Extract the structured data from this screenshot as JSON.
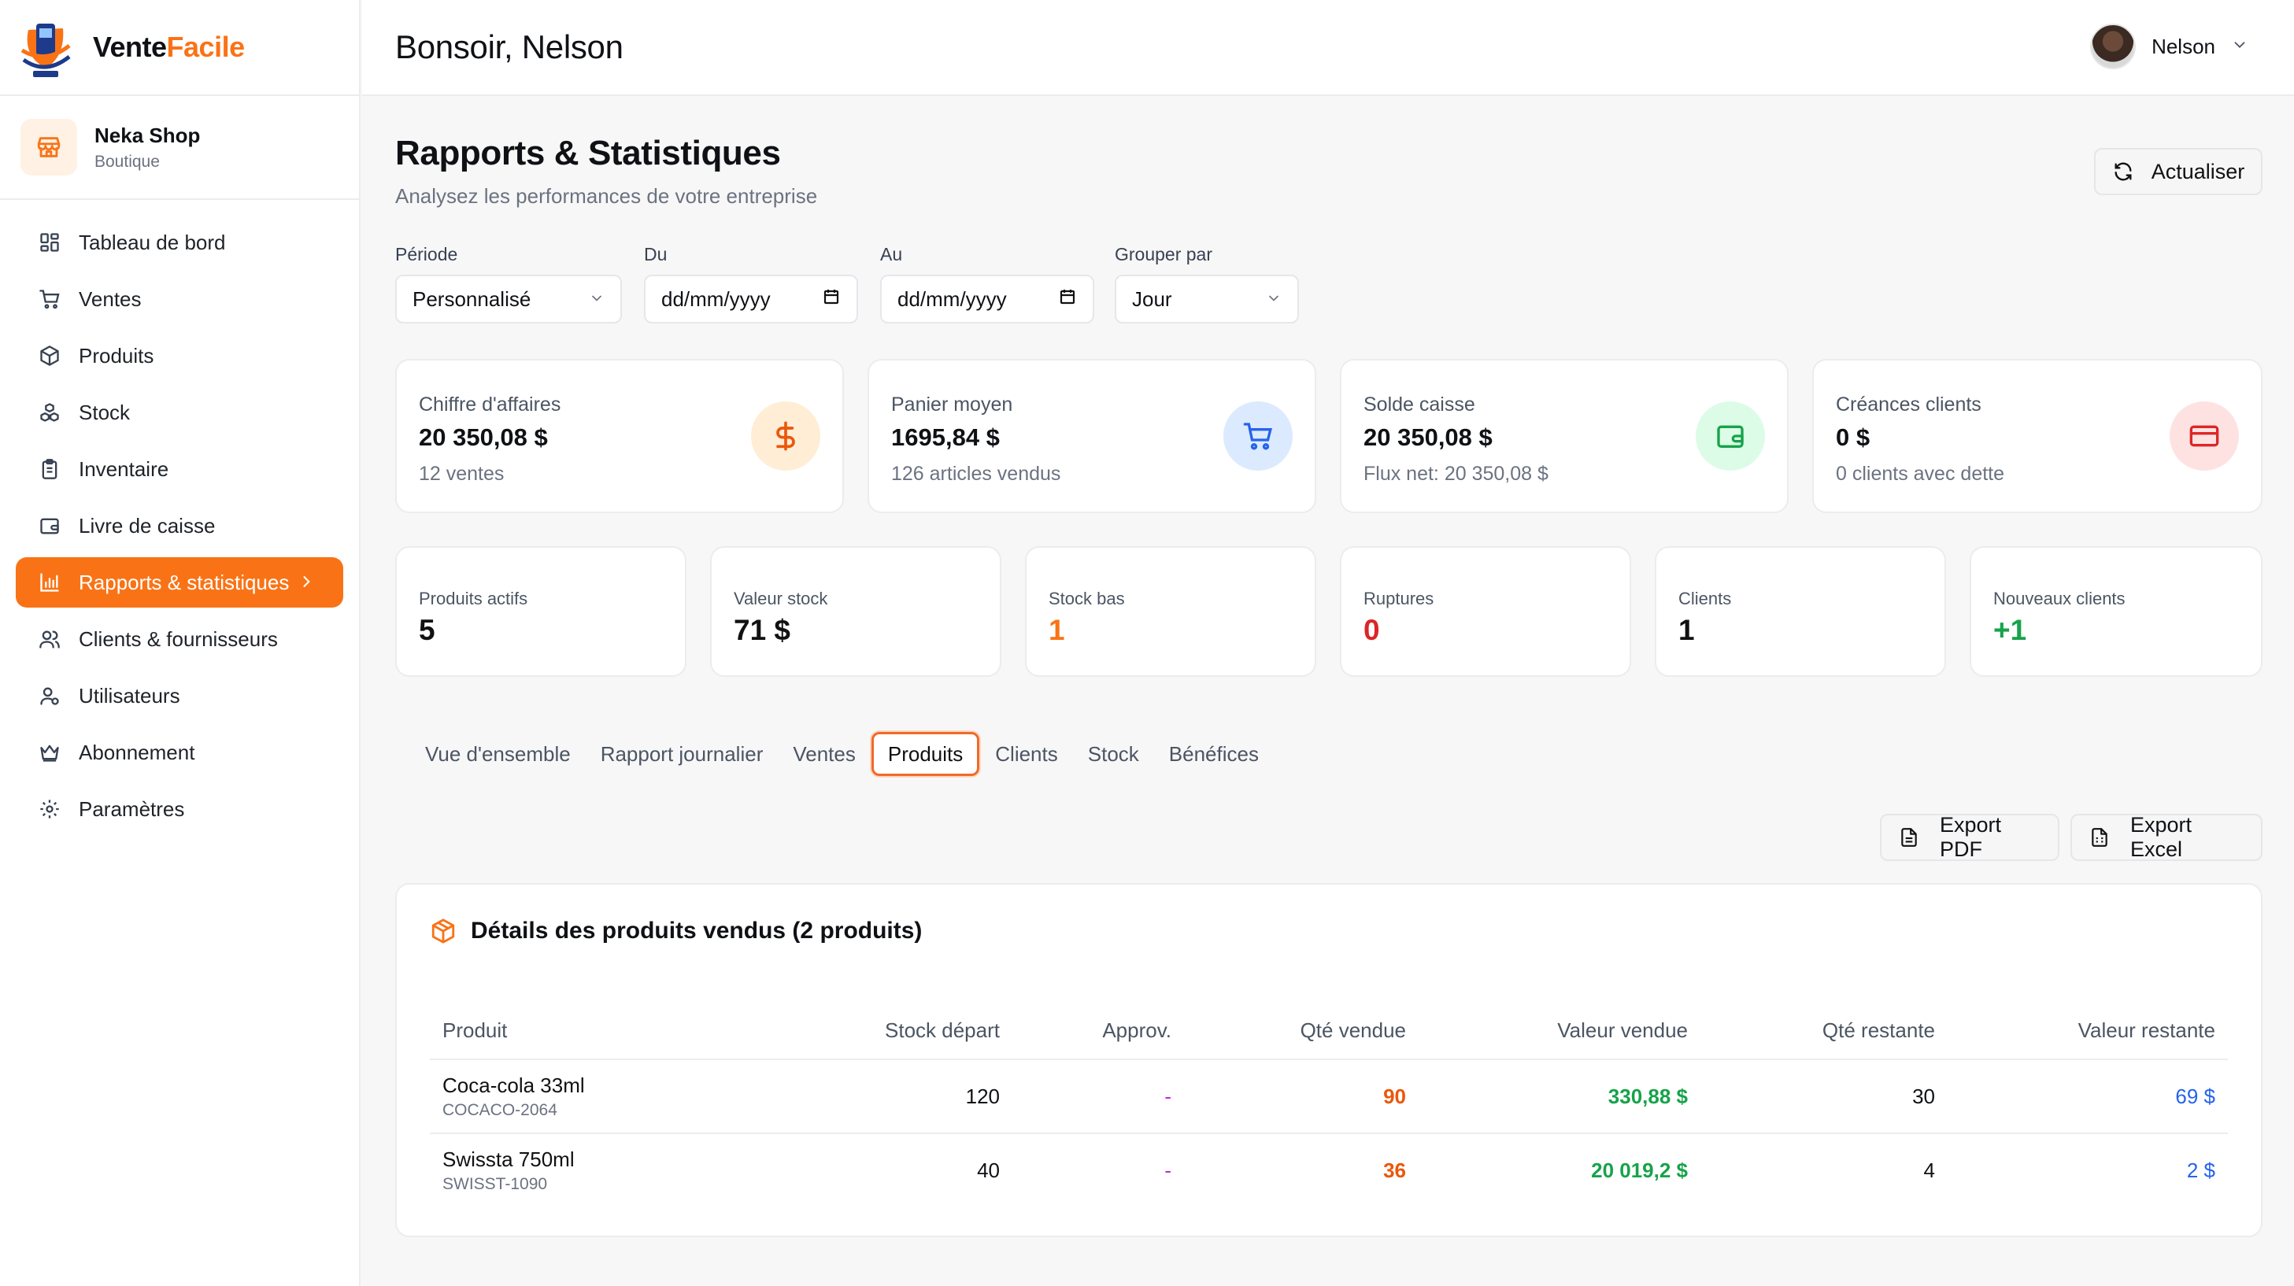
{
  "brand": {
    "name_main": "Vente",
    "name_accent": "Facile"
  },
  "shop": {
    "name": "Neka Shop",
    "type": "Boutique"
  },
  "sidebar": {
    "items": [
      {
        "label": "Tableau de bord",
        "icon": "dashboard-icon"
      },
      {
        "label": "Ventes",
        "icon": "cart-icon"
      },
      {
        "label": "Produits",
        "icon": "box-icon"
      },
      {
        "label": "Stock",
        "icon": "boxes-icon"
      },
      {
        "label": "Inventaire",
        "icon": "clipboard-icon"
      },
      {
        "label": "Livre de caisse",
        "icon": "wallet-icon"
      },
      {
        "label": "Rapports & statistiques",
        "icon": "bar-chart-icon",
        "active": true
      },
      {
        "label": "Clients & fournisseurs",
        "icon": "users-icon"
      },
      {
        "label": "Utilisateurs",
        "icon": "user-cog-icon"
      },
      {
        "label": "Abonnement",
        "icon": "crown-icon"
      },
      {
        "label": "Paramètres",
        "icon": "gear-icon"
      }
    ]
  },
  "header": {
    "greeting": "Bonsoir, Nelson",
    "user_name": "Nelson"
  },
  "page": {
    "title": "Rapports & Statistiques",
    "subtitle": "Analysez les performances de votre entreprise",
    "refresh_label": "Actualiser"
  },
  "filters": {
    "period": {
      "label": "Période",
      "value": "Personnalisé"
    },
    "from": {
      "label": "Du",
      "value": "dd/mm/yyyy"
    },
    "to": {
      "label": "Au",
      "value": "dd/mm/yyyy"
    },
    "group": {
      "label": "Grouper par",
      "value": "Jour"
    }
  },
  "kpis": [
    {
      "label": "Chiffre d'affaires",
      "value": "20 350,08 $",
      "sub": "12 ventes",
      "icon": "dollar-icon",
      "color": "#ea580c",
      "bg": "#ffedd5"
    },
    {
      "label": "Panier moyen",
      "value": "1695,84 $",
      "sub": "126 articles vendus",
      "icon": "cart-icon",
      "color": "#2563eb",
      "bg": "#dbeafe"
    },
    {
      "label": "Solde caisse",
      "value": "20 350,08 $",
      "sub": "Flux net: 20 350,08 $",
      "icon": "wallet-icon",
      "color": "#16a34a",
      "bg": "#dcfce7"
    },
    {
      "label": "Créances clients",
      "value": "0 $",
      "sub": "0 clients avec dette",
      "icon": "credit-card-icon",
      "color": "#dc2626",
      "bg": "#fee2e2"
    }
  ],
  "stats": [
    {
      "label": "Produits actifs",
      "value": "5",
      "color": "#111111"
    },
    {
      "label": "Valeur stock",
      "value": "71 $",
      "color": "#111111"
    },
    {
      "label": "Stock bas",
      "value": "1",
      "color": "#f97316"
    },
    {
      "label": "Ruptures",
      "value": "0",
      "color": "#dc2626"
    },
    {
      "label": "Clients",
      "value": "1",
      "color": "#111111"
    },
    {
      "label": "Nouveaux clients",
      "value": "+1",
      "color": "#16a34a"
    }
  ],
  "tabs": [
    "Vue d'ensemble",
    "Rapport journalier",
    "Ventes",
    "Produits",
    "Clients",
    "Stock",
    "Bénéfices"
  ],
  "active_tab": "Produits",
  "exports": {
    "pdf": "Export PDF",
    "excel": "Export Excel"
  },
  "products_panel": {
    "title": "Détails des produits vendus (2 produits)",
    "columns": [
      "Produit",
      "Stock départ",
      "Approv.",
      "Qté vendue",
      "Valeur vendue",
      "Qté restante",
      "Valeur restante"
    ],
    "rows": [
      {
        "name": "Coca-cola 33ml",
        "sku": "COCACO-2064",
        "stock_start": "120",
        "approv": "-",
        "qty_sold": "90",
        "value_sold": "330,88 $",
        "qty_left": "30",
        "value_left": "69 $"
      },
      {
        "name": "Swissta 750ml",
        "sku": "SWISST-1090",
        "stock_start": "40",
        "approv": "-",
        "qty_sold": "36",
        "value_sold": "20 019,2 $",
        "qty_left": "4",
        "value_left": "2 $"
      }
    ]
  }
}
